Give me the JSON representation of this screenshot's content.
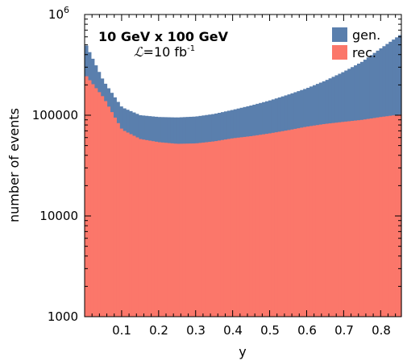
{
  "chart_data": {
    "type": "bar",
    "title": "",
    "xlabel": "y",
    "ylabel": "number of events",
    "xlim": [
      0.0,
      0.856
    ],
    "ylim": [
      1000,
      1000000
    ],
    "yscale": "log",
    "x_tick_labels": [
      "0.1",
      "0.2",
      "0.3",
      "0.4",
      "0.5",
      "0.6",
      "0.7",
      "0.8"
    ],
    "y_tick_labels": [
      "1000",
      "10000",
      "100000"
    ],
    "y_top_tick": {
      "base": "10",
      "exp": "6"
    },
    "annotation": {
      "energy": "10 GeV x 100 GeV",
      "lumi_symbol": "ℒ",
      "lumi_value": "=10 fb",
      "lumi_exp": "-1"
    },
    "legend_position": "top-right",
    "colors": {
      "gen": "#5a7fad",
      "rec": "#fb776a"
    },
    "series": [
      {
        "name": "gen.",
        "x": [
          0.0,
          0.05,
          0.1,
          0.15,
          0.2,
          0.25,
          0.3,
          0.35,
          0.4,
          0.45,
          0.5,
          0.55,
          0.6,
          0.65,
          0.7,
          0.75,
          0.8,
          0.856
        ],
        "values": [
          530000,
          220000,
          120000,
          100000,
          96000,
          95000,
          97000,
          103000,
          113000,
          125000,
          140000,
          160000,
          185000,
          220000,
          270000,
          340000,
          460000,
          640000
        ]
      },
      {
        "name": "rec.",
        "x": [
          0.0,
          0.05,
          0.1,
          0.15,
          0.2,
          0.25,
          0.3,
          0.35,
          0.4,
          0.45,
          0.5,
          0.55,
          0.6,
          0.65,
          0.7,
          0.75,
          0.8,
          0.856
        ],
        "values": [
          255000,
          150000,
          72000,
          58000,
          54000,
          52000,
          52500,
          55000,
          59000,
          62000,
          66000,
          71000,
          77000,
          82000,
          86000,
          90000,
          96000,
          102000
        ]
      }
    ]
  }
}
